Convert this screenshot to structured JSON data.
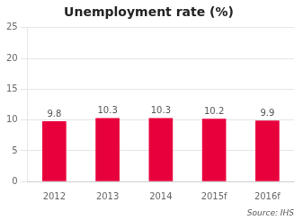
{
  "chart_data": {
    "type": "bar",
    "title": "Unemployment rate (%)",
    "categories": [
      "2012",
      "2013",
      "2014",
      "2015f",
      "2016f"
    ],
    "values": [
      9.8,
      10.3,
      10.3,
      10.2,
      9.9
    ],
    "color": "#e8003c",
    "ylim": [
      0,
      25
    ],
    "yticks": [
      0,
      5,
      10,
      15,
      20,
      25
    ],
    "grid": true,
    "data_labels": true,
    "annotations": [
      "Source: IHS"
    ]
  }
}
